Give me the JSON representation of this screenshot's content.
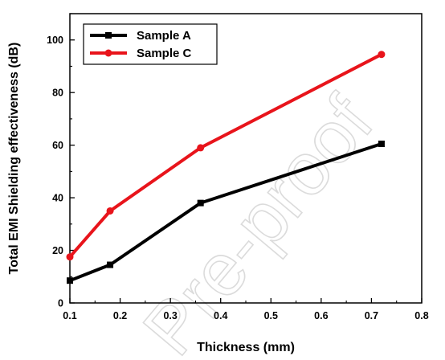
{
  "chart_data": {
    "type": "line",
    "title": "",
    "xlabel": "Thickness (mm)",
    "ylabel": "Total EMI Shielding effectiveness (dB)",
    "xlim": [
      0.1,
      0.8
    ],
    "ylim": [
      0,
      110
    ],
    "x_ticks": [
      "0.1",
      "0.2",
      "0.3",
      "0.4",
      "0.5",
      "0.6",
      "0.7",
      "0.8"
    ],
    "y_ticks": [
      "0",
      "20",
      "40",
      "60",
      "80",
      "100"
    ],
    "grid": false,
    "legend_position": "top-left",
    "series": [
      {
        "name": "Sample A",
        "color": "#000000",
        "marker": "square",
        "x": [
          0.1,
          0.18,
          0.36,
          0.72
        ],
        "y": [
          8.5,
          14.5,
          38,
          60.5
        ]
      },
      {
        "name": "Sample C",
        "color": "#e8141b",
        "marker": "circle",
        "x": [
          0.1,
          0.18,
          0.36,
          0.72
        ],
        "y": [
          17.5,
          35,
          59,
          94.5
        ]
      }
    ]
  },
  "watermark": "Pre-proof"
}
